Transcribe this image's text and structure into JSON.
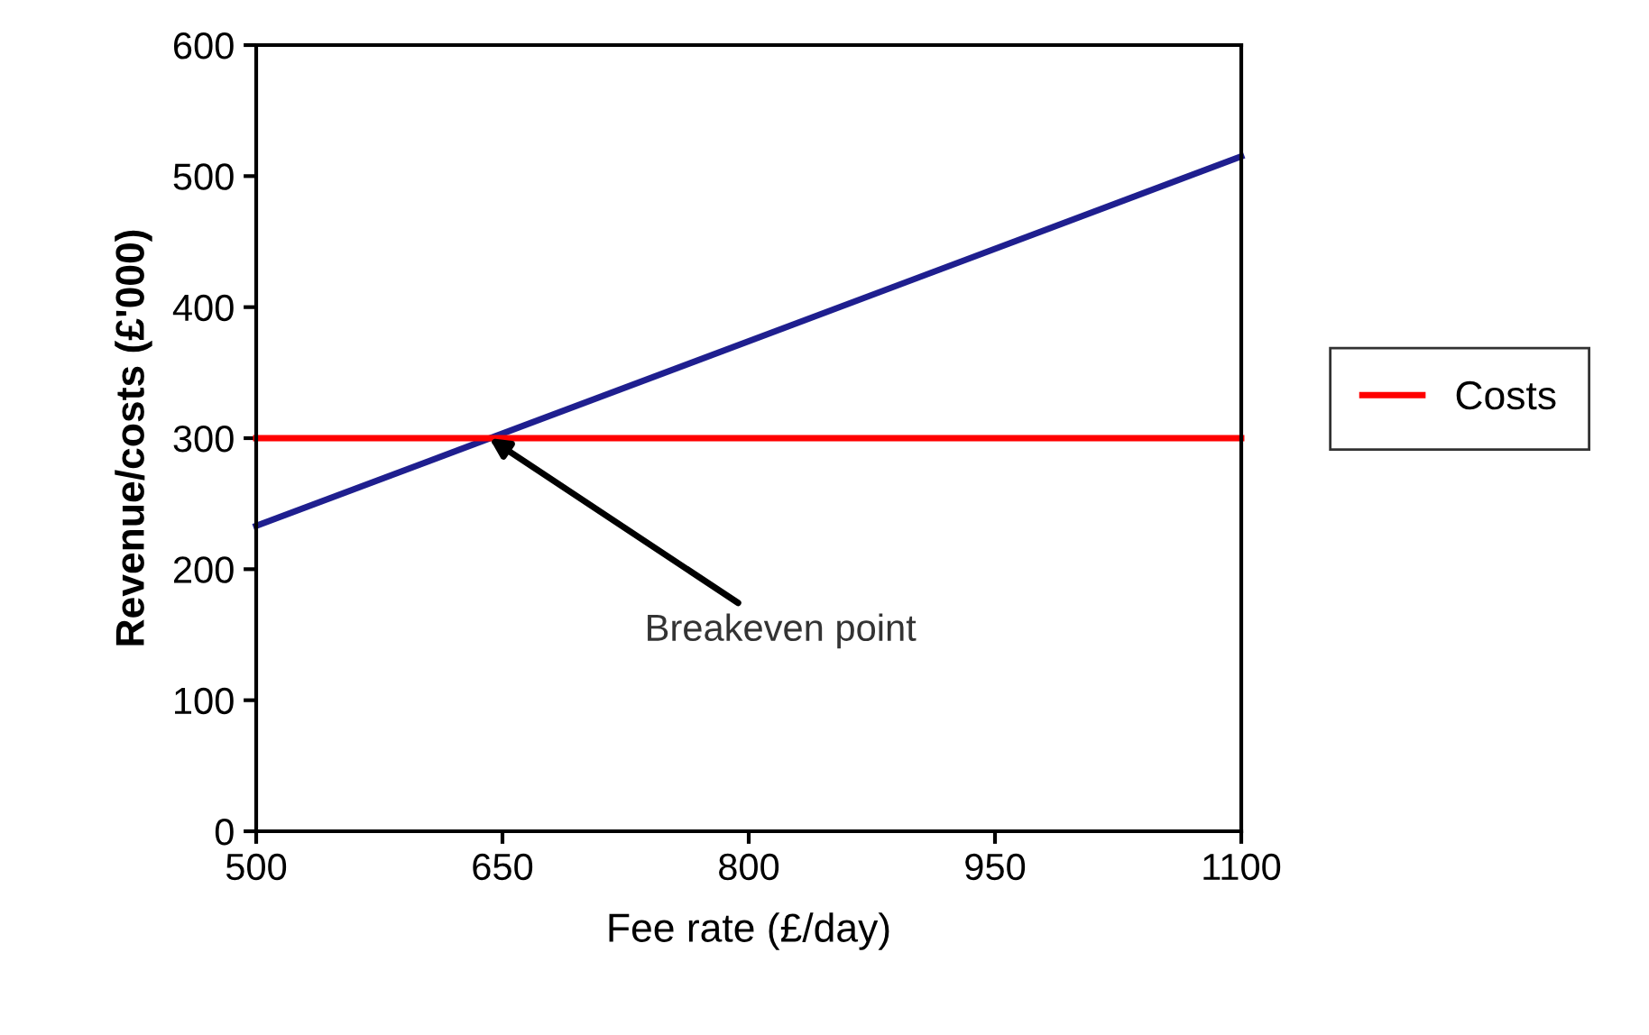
{
  "chart_data": {
    "type": "line",
    "xlabel": "Fee rate (£/day)",
    "ylabel": "Revenue/costs (£'000)",
    "series": [
      {
        "color": "#1f1f8f",
        "values": [
          233,
          515
        ]
      },
      {
        "name": "Costs",
        "color": "#ff0000",
        "values": [
          300,
          300
        ]
      }
    ],
    "x": [
      500,
      1100
    ],
    "xlim": [
      500,
      1100
    ],
    "xticks": [
      500,
      650,
      800,
      950,
      1100
    ],
    "ylim": [
      0,
      600
    ],
    "yticks": [
      0,
      100,
      200,
      300,
      400,
      500,
      600
    ],
    "annotations": [
      {
        "text": "Breakeven point",
        "x": 642,
        "y": 300
      }
    ],
    "legend": "right",
    "grid": false,
    "marker": "none",
    "line_style": "solid"
  }
}
